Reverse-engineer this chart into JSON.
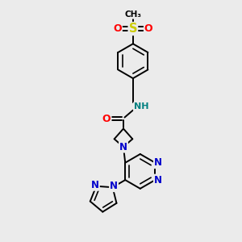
{
  "bg_color": "#ebebeb",
  "atom_colors": {
    "C": "#000000",
    "N": "#0000cc",
    "O": "#ff0000",
    "S": "#cccc00",
    "H": "#008080"
  },
  "bond_color": "#000000",
  "bond_width": 1.4,
  "font_size_atom": 8.5,
  "font_size_small": 7.5,
  "figsize": [
    3.0,
    3.0
  ],
  "dpi": 100
}
